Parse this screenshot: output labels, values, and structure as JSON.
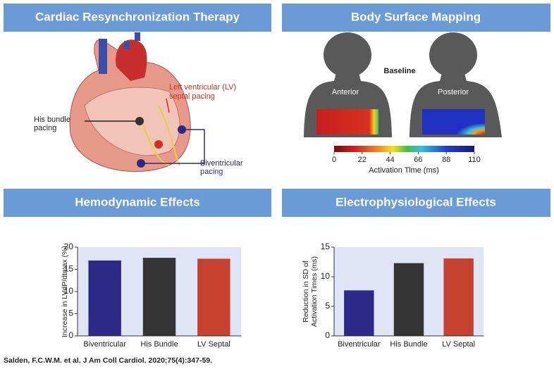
{
  "panels": {
    "cardiac_header": "Cardiac Resynchronization Therapy",
    "bsm_header": "Body Surface Mapping",
    "hemo_header": "Hemodynamic Effects",
    "ep_header": "Electrophysiological Effects"
  },
  "heart_labels": {
    "lv_septal": [
      "Left ventricular (LV)",
      "septal pacing"
    ],
    "his": [
      "His bundle",
      "pacing"
    ],
    "biv": [
      "Biventricular",
      "pacing"
    ]
  },
  "bsm": {
    "baseline": "Baseline",
    "anterior": "Anterior",
    "posterior": "Posterior",
    "colorbar": {
      "lim": [
        0,
        110
      ],
      "ticks": [
        0,
        22,
        44,
        66,
        88,
        110
      ],
      "label": "Activation Time (ms)"
    }
  },
  "chart_data": [
    {
      "type": "bar",
      "ylabel": [
        "Increase in LVdP/dtmax (%)"
      ],
      "categories": [
        "Biventricular",
        "His Bundle",
        "LV Septal"
      ],
      "values": [
        17,
        17.6,
        17.4
      ],
      "colors": [
        "#2c2a86",
        "#333333",
        "#c6412e"
      ],
      "ylim": [
        0,
        20
      ],
      "yticks": [
        0,
        5,
        10,
        15,
        20
      ]
    },
    {
      "type": "bar",
      "ylabel": [
        "Reduction in SD of",
        "Activation Times (ms)"
      ],
      "categories": [
        "Biventricular",
        "His Bundle",
        "LV Septal"
      ],
      "values": [
        7.7,
        12.3,
        13.1
      ],
      "colors": [
        "#2c2a86",
        "#333333",
        "#c6412e"
      ],
      "ylim": [
        0,
        15
      ],
      "yticks": [
        0,
        5,
        10,
        15
      ]
    }
  ],
  "citation": "Salden, F.C.W.M. et al. J Am Coll Cardiol. 2020;75(4):347-59."
}
